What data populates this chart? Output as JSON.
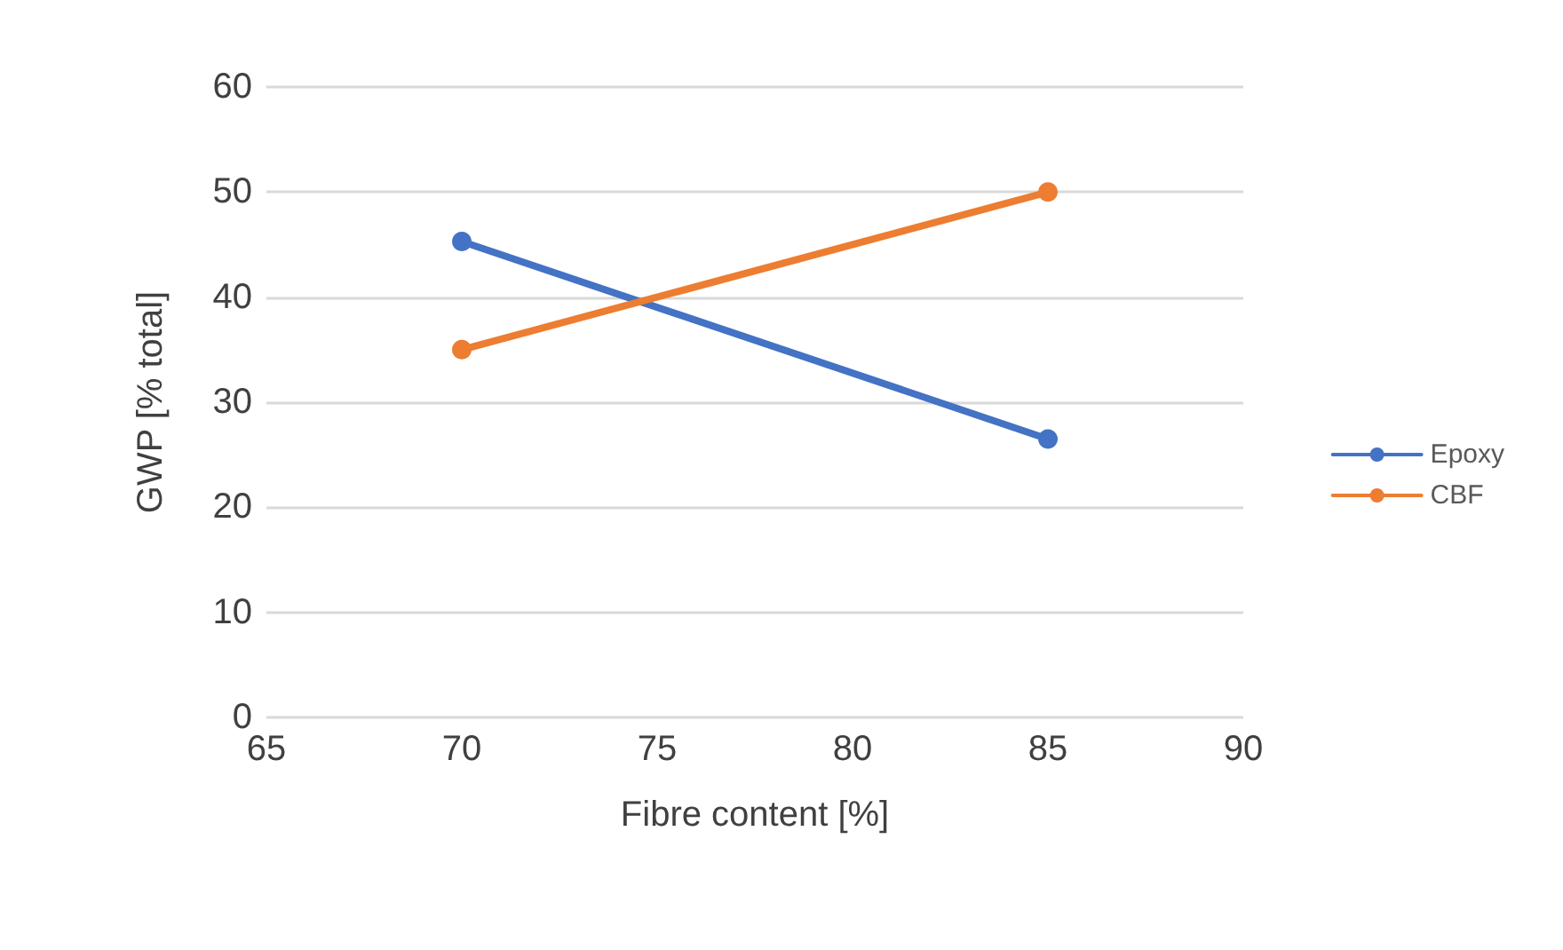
{
  "chart_data": {
    "type": "line",
    "xlabel": "Fibre content [%]",
    "ylabel": "GWP [% total]",
    "x": [
      70,
      85
    ],
    "series": [
      {
        "name": "Epoxy",
        "color": "#4472c4",
        "values": [
          45.3,
          26.5
        ]
      },
      {
        "name": "CBF",
        "color": "#ed7d31",
        "values": [
          35,
          50
        ]
      }
    ],
    "xlim": [
      65,
      90
    ],
    "xticks": [
      65,
      70,
      75,
      80,
      85,
      90
    ],
    "ylim": [
      0,
      60
    ],
    "yticks": [
      0,
      10,
      20,
      30,
      40,
      50,
      60
    ],
    "grid": "y",
    "legend": "right",
    "marker": "circle",
    "line_style": "solid"
  }
}
